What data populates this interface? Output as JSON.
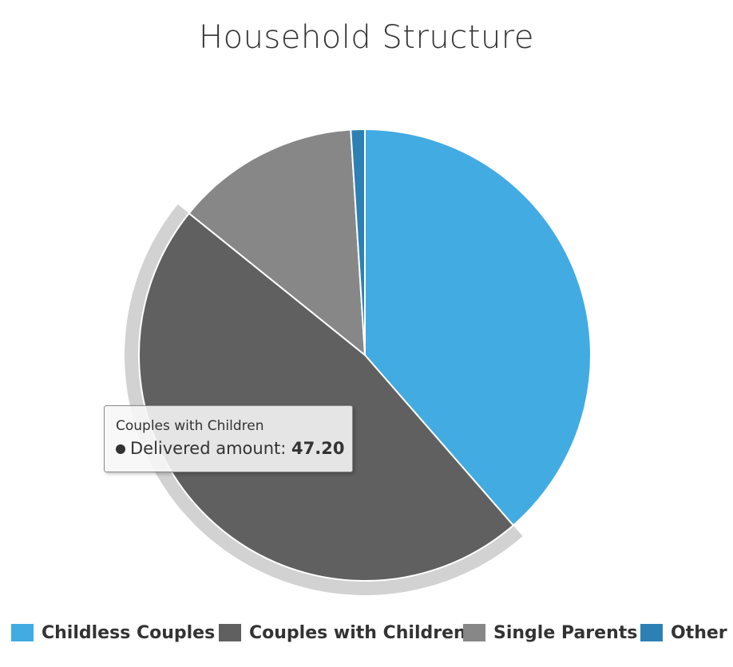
{
  "chart_data": {
    "type": "pie",
    "title": "Household Structure",
    "series_name": "Delivered amount",
    "categories": [
      "Childless Couples",
      "Couples with Children",
      "Single Parents",
      "Other"
    ],
    "values": [
      38.6,
      47.2,
      13.2,
      1.0
    ],
    "colors": [
      "#42abe2",
      "#606060",
      "#878787",
      "#2d80b3"
    ],
    "highlighted": "Couples with Children",
    "legend_position": "bottom",
    "tooltip": {
      "header": "Couples with Children",
      "series_label": "Delivered amount:",
      "value": "47.20"
    }
  }
}
